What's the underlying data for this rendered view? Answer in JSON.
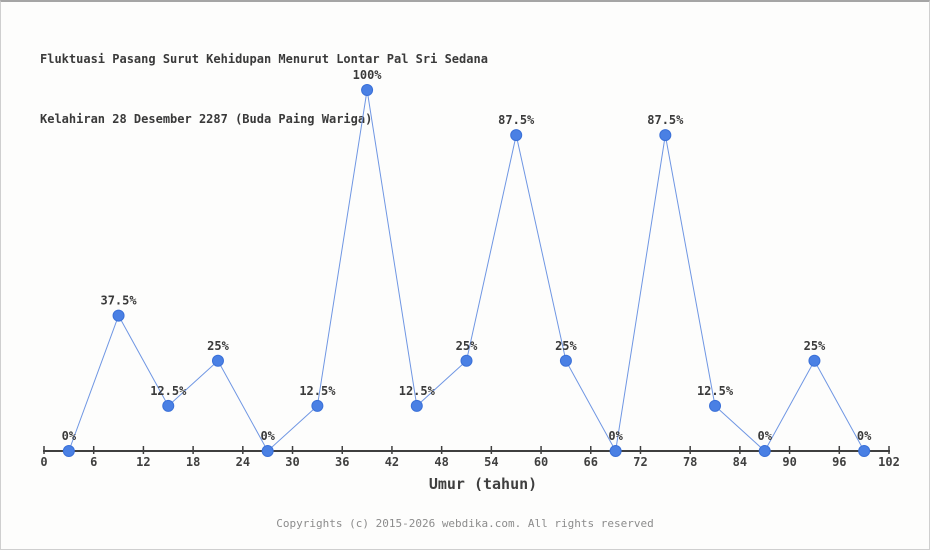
{
  "chart_data": {
    "type": "line",
    "title": "Fluktuasi Pasang Surut Kehidupan Menurut Lontar Pal Sri Sedana",
    "subtitle": "Kelahiran 28 Desember 2287 (Buda Paing Wariga)",
    "xlabel": "Umur (tahun)",
    "ylabel": "",
    "x": [
      3,
      9,
      15,
      21,
      27,
      33,
      39,
      45,
      51,
      57,
      63,
      69,
      75,
      81,
      87,
      93,
      99
    ],
    "values": [
      0,
      37.5,
      12.5,
      25,
      0,
      12.5,
      100,
      12.5,
      25,
      87.5,
      25,
      0,
      87.5,
      12.5,
      0,
      25,
      0
    ],
    "point_labels": [
      "0%",
      "37.5%",
      "12.5%",
      "25%",
      "0%",
      "12.5%",
      "100%",
      "12.5%",
      "25%",
      "87.5%",
      "25%",
      "0%",
      "87.5%",
      "12.5%",
      "0%",
      "25%",
      "0%"
    ],
    "x_ticks": [
      0,
      6,
      12,
      18,
      24,
      30,
      36,
      42,
      48,
      54,
      60,
      66,
      72,
      78,
      84,
      90,
      96,
      102
    ],
    "xlim": [
      0,
      102
    ],
    "ylim": [
      0,
      100
    ],
    "grid": false,
    "legend": "none",
    "colors": {
      "line": "#6f96e3",
      "marker": "#4a80e4",
      "marker_stroke": "#3a70d8",
      "axis": "#3f3f3f",
      "tick_label": "#3f3f3f",
      "point_label": "#3a3a3a"
    }
  },
  "footer": {
    "text": "Copyrights (c) 2015-2026 webdika.com. All rights reserved"
  }
}
